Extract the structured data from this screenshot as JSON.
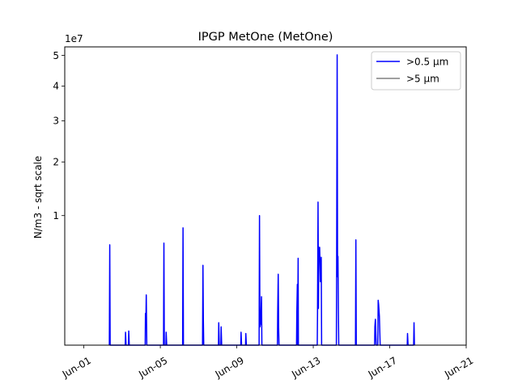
{
  "chart_data": {
    "type": "line",
    "title": "IPGP MetOne (MetOne)",
    "xlabel": "",
    "ylabel": "N/m3 - sqrt scale",
    "y_offset_label": "1e7",
    "y_scale": "sqrt",
    "y_multiplier": 10000000,
    "ylim": [
      0,
      5.3
    ],
    "xlim": [
      "2023-05-31",
      "2023-06-21"
    ],
    "x_ticks": [
      {
        "date": "2023-06-01",
        "label": "Jun-01"
      },
      {
        "date": "2023-06-05",
        "label": "Jun-05"
      },
      {
        "date": "2023-06-09",
        "label": "Jun-09"
      },
      {
        "date": "2023-06-13",
        "label": "Jun-13"
      },
      {
        "date": "2023-06-17",
        "label": "Jun-17"
      },
      {
        "date": "2023-06-21",
        "label": "Jun-21"
      }
    ],
    "y_ticks": [
      {
        "value": 1,
        "label": "1"
      },
      {
        "value": 2,
        "label": "2"
      },
      {
        "value": 3,
        "label": "3"
      },
      {
        "value": 4,
        "label": "4"
      },
      {
        "value": 5,
        "label": "5"
      }
    ],
    "grid": false,
    "legend_position": "top-right",
    "series": [
      {
        "name": ">0.5 µm",
        "color": "#0000ff",
        "points": [
          [
            "2023-06-02T08:00",
            0
          ],
          [
            "2023-06-02T08:30",
            0.6
          ],
          [
            "2023-06-02T09:00",
            0
          ],
          [
            "2023-06-03T04:00",
            0
          ],
          [
            "2023-06-03T04:20",
            0.01
          ],
          [
            "2023-06-03T05:00",
            0
          ],
          [
            "2023-06-03T08:00",
            0
          ],
          [
            "2023-06-03T08:20",
            0.012
          ],
          [
            "2023-06-03T09:00",
            0
          ],
          [
            "2023-06-04T05:00",
            0
          ],
          [
            "2023-06-04T05:20",
            0.06
          ],
          [
            "2023-06-04T06:00",
            0.06
          ],
          [
            "2023-06-04T06:20",
            0.15
          ],
          [
            "2023-06-04T07:00",
            0
          ],
          [
            "2023-06-05T04:00",
            0
          ],
          [
            "2023-06-05T04:30",
            0.62
          ],
          [
            "2023-06-05T05:00",
            0
          ],
          [
            "2023-06-05T07:00",
            0
          ],
          [
            "2023-06-05T07:20",
            0.01
          ],
          [
            "2023-06-05T08:00",
            0
          ],
          [
            "2023-06-06T04:00",
            0
          ],
          [
            "2023-06-06T04:30",
            0.82
          ],
          [
            "2023-06-06T05:00",
            0
          ],
          [
            "2023-06-07T05:00",
            0
          ],
          [
            "2023-06-07T05:30",
            0.38
          ],
          [
            "2023-06-07T06:00",
            0.04
          ],
          [
            "2023-06-07T06:30",
            0
          ],
          [
            "2023-06-08T01:00",
            0
          ],
          [
            "2023-06-08T01:20",
            0.03
          ],
          [
            "2023-06-08T02:00",
            0
          ],
          [
            "2023-06-08T04:00",
            0
          ],
          [
            "2023-06-08T04:20",
            0.02
          ],
          [
            "2023-06-08T05:00",
            0
          ],
          [
            "2023-06-09T05:00",
            0
          ],
          [
            "2023-06-09T05:20",
            0.01
          ],
          [
            "2023-06-09T06:00",
            0
          ],
          [
            "2023-06-09T11:00",
            0
          ],
          [
            "2023-06-09T11:20",
            0.008
          ],
          [
            "2023-06-09T12:00",
            0
          ],
          [
            "2023-06-10T04:00",
            0
          ],
          [
            "2023-06-10T04:30",
            1.0
          ],
          [
            "2023-06-10T05:00",
            0.02
          ],
          [
            "2023-06-10T06:00",
            0.03
          ],
          [
            "2023-06-10T07:00",
            0.14
          ],
          [
            "2023-06-10T07:30",
            0
          ],
          [
            "2023-06-11T03:00",
            0
          ],
          [
            "2023-06-11T03:20",
            0.06
          ],
          [
            "2023-06-11T04:00",
            0.3
          ],
          [
            "2023-06-11T04:30",
            0.02
          ],
          [
            "2023-06-11T05:00",
            0
          ],
          [
            "2023-06-12T03:00",
            0
          ],
          [
            "2023-06-12T03:20",
            0.06
          ],
          [
            "2023-06-12T04:00",
            0.22
          ],
          [
            "2023-06-12T04:20",
            0
          ],
          [
            "2023-06-12T05:00",
            0.45
          ],
          [
            "2023-06-12T05:20",
            0
          ],
          [
            "2023-06-13T05:00",
            0
          ],
          [
            "2023-06-13T05:20",
            0.06
          ],
          [
            "2023-06-13T06:00",
            1.22
          ],
          [
            "2023-06-13T06:30",
            0.08
          ],
          [
            "2023-06-13T07:00",
            0.57
          ],
          [
            "2023-06-13T08:00",
            0.57
          ],
          [
            "2023-06-13T09:00",
            0.24
          ],
          [
            "2023-06-13T10:00",
            0.46
          ],
          [
            "2023-06-13T10:30",
            0
          ],
          [
            "2023-06-14T05:00",
            0
          ],
          [
            "2023-06-14T05:20",
            0.37
          ],
          [
            "2023-06-14T06:00",
            5.02
          ],
          [
            "2023-06-14T06:30",
            0.28
          ],
          [
            "2023-06-14T07:00",
            0.47
          ],
          [
            "2023-06-14T07:30",
            0.08
          ],
          [
            "2023-06-14T08:00",
            0
          ],
          [
            "2023-06-15T05:00",
            0
          ],
          [
            "2023-06-15T05:30",
            0.66
          ],
          [
            "2023-06-15T06:00",
            0
          ],
          [
            "2023-06-16T05:00",
            0
          ],
          [
            "2023-06-16T05:20",
            0.02
          ],
          [
            "2023-06-16T06:00",
            0.04
          ],
          [
            "2023-06-16T07:00",
            0
          ],
          [
            "2023-06-16T09:00",
            0
          ],
          [
            "2023-06-16T09:30",
            0.12
          ],
          [
            "2023-06-16T10:00",
            0.1
          ],
          [
            "2023-06-16T11:00",
            0.05
          ],
          [
            "2023-06-16T12:00",
            0
          ],
          [
            "2023-06-17T22:00",
            0
          ],
          [
            "2023-06-17T22:20",
            0.008
          ],
          [
            "2023-06-17T23:00",
            0
          ],
          [
            "2023-06-18T06:00",
            0
          ],
          [
            "2023-06-18T06:30",
            0.03
          ],
          [
            "2023-06-18T07:00",
            0
          ]
        ]
      },
      {
        "name": ">5 µm",
        "color": "#808080",
        "points": []
      }
    ]
  }
}
